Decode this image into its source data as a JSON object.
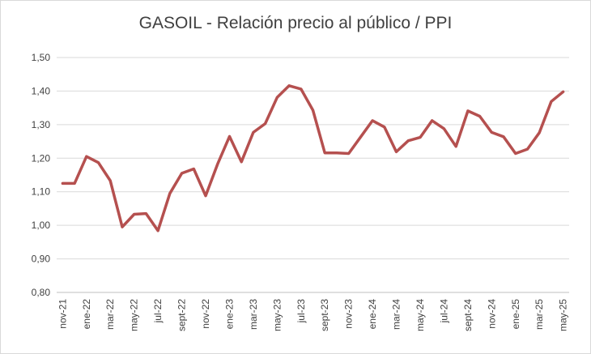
{
  "chart_data": {
    "type": "line",
    "title": "GASOIL - Relación precio al público / PPI",
    "xlabel": "",
    "ylabel": "",
    "ylim": [
      0.8,
      1.5
    ],
    "yticks": [
      "0,80",
      "0,90",
      "1,00",
      "1,10",
      "1,20",
      "1,30",
      "1,40",
      "1,50"
    ],
    "grid": true,
    "legend": "none",
    "x": [
      "nov-21",
      "dic-21",
      "ene-22",
      "feb-22",
      "mar-22",
      "abr-22",
      "may-22",
      "jun-22",
      "jul-22",
      "ago-22",
      "sept-22",
      "oct-22",
      "nov-22",
      "dic-22",
      "ene-23",
      "feb-23",
      "mar-23",
      "abr-23",
      "may-23",
      "jun-23",
      "jul-23",
      "ago-23",
      "sept-23",
      "oct-23",
      "nov-23",
      "dic-23",
      "ene-24",
      "feb-24",
      "mar-24",
      "abr-24",
      "may-24",
      "jun-24",
      "jul-24",
      "ago-24",
      "sept-24",
      "oct-24",
      "nov-24",
      "dic-24",
      "ene-25",
      "feb-25",
      "mar-25",
      "abr-25",
      "may-25"
    ],
    "xtick_labels": [
      "nov-21",
      "ene-22",
      "mar-22",
      "may-22",
      "jul-22",
      "sept-22",
      "nov-22",
      "ene-23",
      "mar-23",
      "may-23",
      "jul-23",
      "sept-23",
      "nov-23",
      "ene-24",
      "mar-24",
      "may-24",
      "jul-24",
      "sept-24",
      "nov-24",
      "ene-25",
      "mar-25",
      "may-25"
    ],
    "series": [
      {
        "color": "#b5504f",
        "values": [
          1.125,
          1.125,
          1.205,
          1.187,
          1.133,
          0.995,
          1.033,
          1.035,
          0.984,
          1.095,
          1.155,
          1.168,
          1.088,
          1.182,
          1.265,
          1.189,
          1.277,
          1.303,
          1.381,
          1.416,
          1.406,
          1.343,
          1.216,
          1.216,
          1.214,
          1.263,
          1.312,
          1.293,
          1.219,
          1.252,
          1.262,
          1.312,
          1.288,
          1.235,
          1.341,
          1.325,
          1.277,
          1.264,
          1.214,
          1.227,
          1.276,
          1.369,
          1.398
        ]
      }
    ]
  }
}
